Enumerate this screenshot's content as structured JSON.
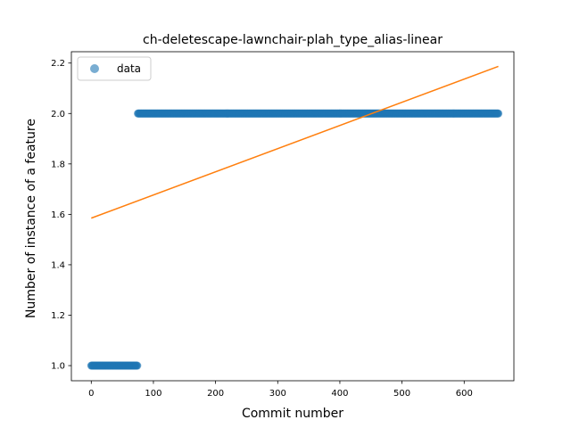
{
  "chart_data": {
    "type": "scatter",
    "title": "ch-deletescape-lawnchair-plah_type_alias-linear",
    "xlabel": "Commit number",
    "ylabel": "Number of instance of a feature",
    "xlim": [
      -32,
      680
    ],
    "ylim": [
      0.94,
      2.245
    ],
    "xticks": [
      0,
      100,
      200,
      300,
      400,
      500,
      600
    ],
    "yticks": [
      1.0,
      1.2,
      1.4,
      1.6,
      1.8,
      2.0,
      2.2
    ],
    "ytick_labels": [
      "1.0",
      "1.2",
      "1.4",
      "1.6",
      "1.8",
      "2.0",
      "2.2"
    ],
    "legend": {
      "placement": "upper-left",
      "entries": [
        "data"
      ]
    },
    "series": [
      {
        "name": "data",
        "kind": "points",
        "color": "#1f77b4",
        "segments": [
          {
            "x_start": 0,
            "x_end": 74,
            "y": 1.0
          },
          {
            "x_start": 75,
            "x_end": 655,
            "y": 2.0
          }
        ]
      },
      {
        "kind": "line",
        "color": "#ff7f0e",
        "x": [
          0,
          655
        ],
        "y": [
          1.585,
          2.187
        ]
      }
    ]
  }
}
